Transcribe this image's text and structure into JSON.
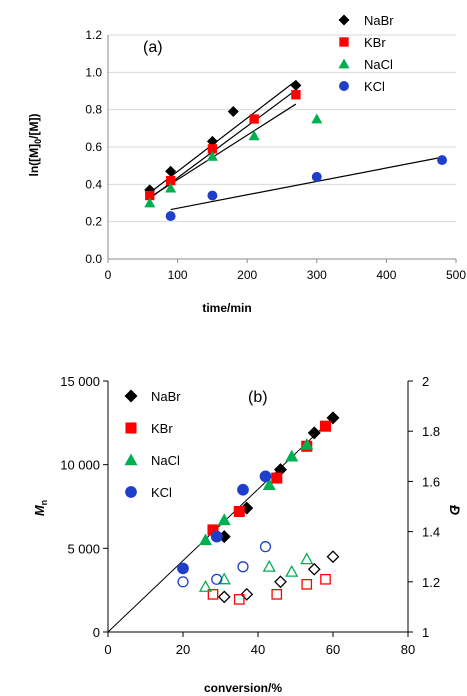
{
  "chart_data": [
    {
      "type": "scatter",
      "panel_label": "(a)",
      "title": "",
      "xlabel": "time/min",
      "ylabel_parts": [
        "ln([M]",
        "0",
        "/[M])"
      ],
      "xlim": [
        0,
        500
      ],
      "ylim": [
        0.0,
        1.2
      ],
      "xticks": [
        0,
        100,
        200,
        300,
        400,
        500
      ],
      "yticks": [
        "0.0",
        "0.2",
        "0.4",
        "0.6",
        "0.8",
        "1.0",
        "1.2"
      ],
      "legend_position": "top-right",
      "series": [
        {
          "name": "NaBr",
          "marker": "diamond",
          "color": "#000000",
          "x": [
            60,
            90,
            150,
            180,
            270
          ],
          "y": [
            0.37,
            0.47,
            0.63,
            0.79,
            0.93
          ],
          "fit": [
            [
              60,
              0.355
            ],
            [
              270,
              0.955
            ]
          ]
        },
        {
          "name": "KBr",
          "marker": "square",
          "color": "#ff0000",
          "x": [
            60,
            90,
            150,
            210,
            270
          ],
          "y": [
            0.34,
            0.42,
            0.59,
            0.75,
            0.88
          ],
          "fit": [
            [
              60,
              0.325
            ],
            [
              270,
              0.905
            ]
          ]
        },
        {
          "name": "NaCl",
          "marker": "triangle",
          "color": "#00b050",
          "x": [
            60,
            90,
            150,
            210,
            300
          ],
          "y": [
            0.3,
            0.38,
            0.55,
            0.66,
            0.75
          ],
          "fit": [
            [
              60,
              0.33
            ],
            [
              270,
              0.83
            ]
          ]
        },
        {
          "name": "KCl",
          "marker": "circle",
          "color": "#1f3fc8",
          "x": [
            90,
            150,
            300,
            480
          ],
          "y": [
            0.23,
            0.34,
            0.44,
            0.53
          ],
          "fit": [
            [
              90,
              0.265
            ],
            [
              480,
              0.545
            ]
          ]
        }
      ]
    },
    {
      "type": "scatter",
      "panel_label": "(b)",
      "title": "",
      "xlabel": "conversion/%",
      "ylabel": "Mn",
      "ylabel_main": "M",
      "ylabel_sub": "n",
      "y2label": "Đ",
      "xlim": [
        0,
        80
      ],
      "ylim": [
        0,
        15000
      ],
      "y2lim": [
        1,
        2
      ],
      "xticks": [
        0,
        20,
        40,
        60,
        80
      ],
      "yticks": [
        "0",
        "5 000",
        "10 000",
        "15 000"
      ],
      "y2ticks": [
        "1",
        "1.2",
        "1.4",
        "1.6",
        "1.8",
        "2"
      ],
      "legend_position": "top-left",
      "theory_line": [
        [
          0,
          0
        ],
        [
          60,
          12800
        ]
      ],
      "series": [
        {
          "name": "NaBr",
          "marker": "diamond",
          "color": "#000000",
          "mn": {
            "x": [
              31,
              37,
              46,
              55,
              60
            ],
            "y": [
              5700,
              7400,
              9700,
              11900,
              12800
            ]
          },
          "dispersity": {
            "x": [
              31,
              37,
              46,
              55,
              60
            ],
            "y": [
              1.14,
              1.15,
              1.2,
              1.25,
              1.3
            ]
          }
        },
        {
          "name": "KBr",
          "marker": "square",
          "color": "#ff0000",
          "mn": {
            "x": [
              28,
              35,
              45,
              53,
              58
            ],
            "y": [
              6100,
              7200,
              9200,
              11100,
              12300
            ]
          },
          "dispersity": {
            "x": [
              28,
              35,
              45,
              53,
              58
            ],
            "y": [
              1.15,
              1.13,
              1.15,
              1.19,
              1.21
            ]
          }
        },
        {
          "name": "NaCl",
          "marker": "triangle",
          "color": "#00b050",
          "mn": {
            "x": [
              26,
              31,
              43,
              49,
              53
            ],
            "y": [
              5500,
              6700,
              8800,
              10500,
              11200
            ]
          },
          "dispersity": {
            "x": [
              26,
              31,
              43,
              49,
              53
            ],
            "y": [
              1.18,
              1.21,
              1.26,
              1.24,
              1.29
            ]
          }
        },
        {
          "name": "KCl",
          "marker": "circle",
          "color": "#1f3fc8",
          "mn": {
            "x": [
              20,
              29,
              36,
              42
            ],
            "y": [
              3800,
              5700,
              8500,
              9300
            ]
          },
          "dispersity": {
            "x": [
              20,
              29,
              36,
              42
            ],
            "y": [
              1.2,
              1.21,
              1.26,
              1.34
            ]
          }
        }
      ]
    }
  ]
}
